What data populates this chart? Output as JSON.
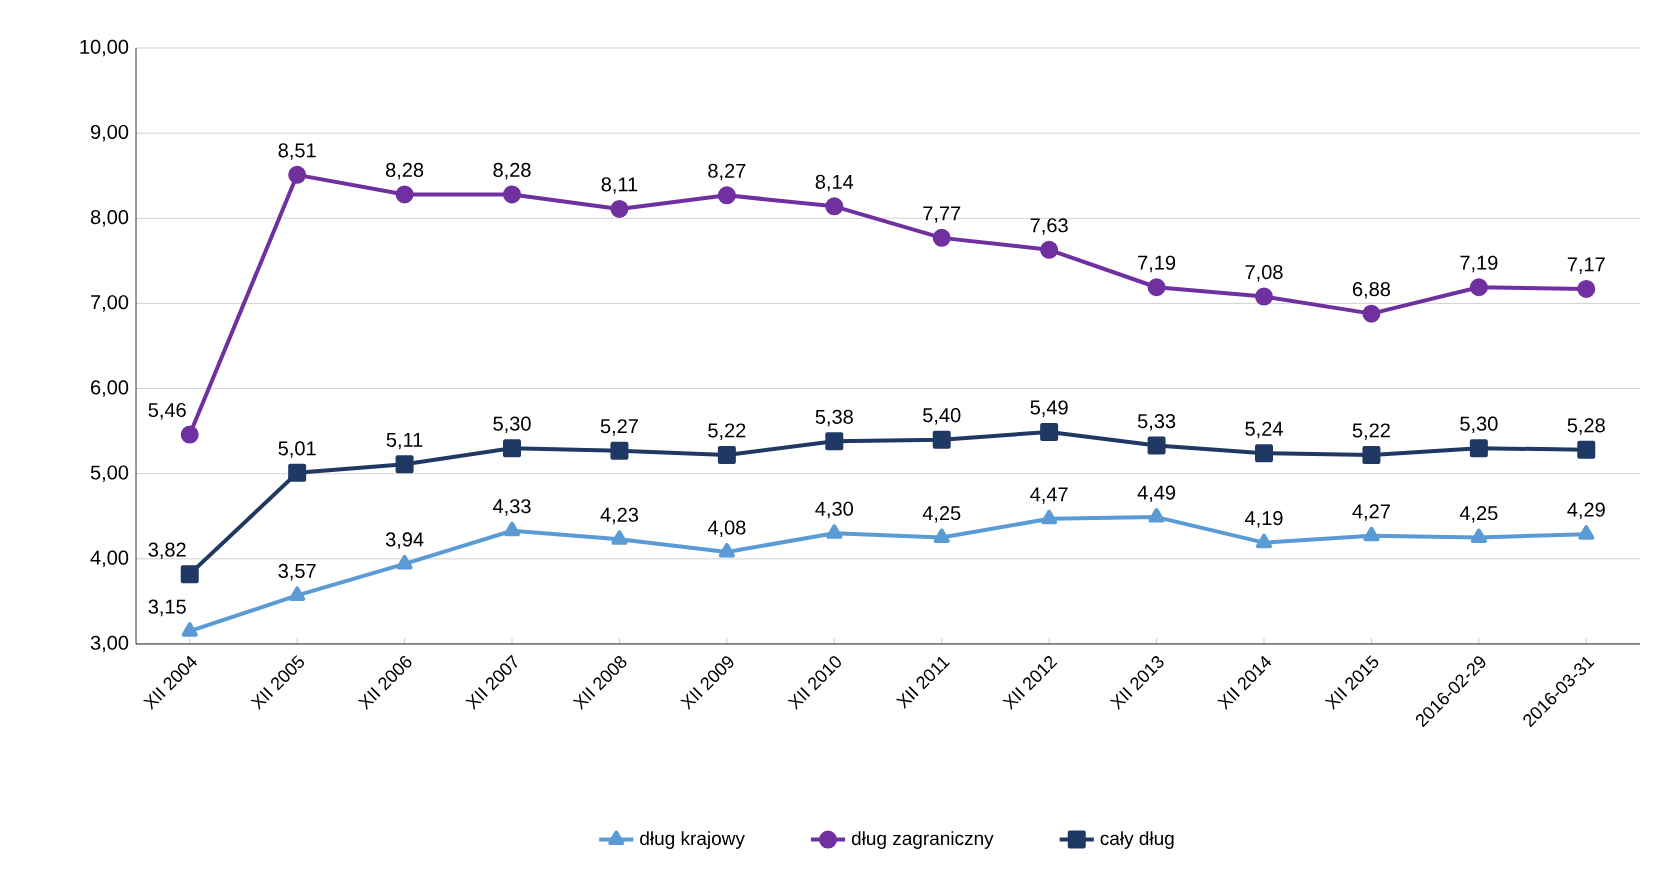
{
  "chart_data": {
    "type": "line",
    "categories": [
      "XII 2004",
      "XII 2005",
      "XII 2006",
      "XII 2007",
      "XII 2008",
      "XII 2009",
      "XII 2010",
      "XII 2011",
      "XII 2012",
      "XII 2013",
      "XII 2014",
      "XII 2015",
      "2016-02-29",
      "2016-03-31"
    ],
    "series": [
      {
        "name": "dług krajowy",
        "color": "#5b9bd5",
        "marker": "triangle",
        "values": [
          3.15,
          3.57,
          3.94,
          4.33,
          4.23,
          4.08,
          4.3,
          4.25,
          4.47,
          4.49,
          4.19,
          4.27,
          4.25,
          4.29
        ],
        "value_labels": [
          "3,15",
          "3,57",
          "3,94",
          "4,33",
          "4,23",
          "4,08",
          "4,30",
          "4,25",
          "4,47",
          "4,49",
          "4,19",
          "4,27",
          "4,25",
          "4,29"
        ]
      },
      {
        "name": "dług zagraniczny",
        "color": "#7030a0",
        "marker": "circle",
        "values": [
          5.46,
          8.51,
          8.28,
          8.28,
          8.11,
          8.27,
          8.14,
          7.77,
          7.63,
          7.19,
          7.08,
          6.88,
          7.19,
          7.17
        ],
        "value_labels": [
          "5,46",
          "8,51",
          "8,28",
          "8,28",
          "8,11",
          "8,27",
          "8,14",
          "7,77",
          "7,63",
          "7,19",
          "7,08",
          "6,88",
          "7,19",
          "7,17"
        ]
      },
      {
        "name": "cały dług",
        "color": "#1f3864",
        "marker": "square",
        "values": [
          3.82,
          5.01,
          5.11,
          5.3,
          5.27,
          5.22,
          5.38,
          5.4,
          5.49,
          5.33,
          5.24,
          5.22,
          5.3,
          5.28
        ],
        "value_labels": [
          "3,82",
          "5,01",
          "5,11",
          "5,30",
          "5,27",
          "5,22",
          "5,38",
          "5,40",
          "5,49",
          "5,33",
          "5,24",
          "5,22",
          "5,30",
          "5,28"
        ]
      }
    ],
    "ylim": [
      3,
      10
    ],
    "yticks": [
      {
        "value": 3,
        "label": "3,00"
      },
      {
        "value": 4,
        "label": "4,00"
      },
      {
        "value": 5,
        "label": "5,00"
      },
      {
        "value": 6,
        "label": "6,00"
      },
      {
        "value": 7,
        "label": "7,00"
      },
      {
        "value": 8,
        "label": "8,00"
      },
      {
        "value": 9,
        "label": "9,00"
      },
      {
        "value": 10,
        "label": "10,00"
      }
    ],
    "grid": "y",
    "legend": "bottom",
    "line_style": "solid"
  }
}
